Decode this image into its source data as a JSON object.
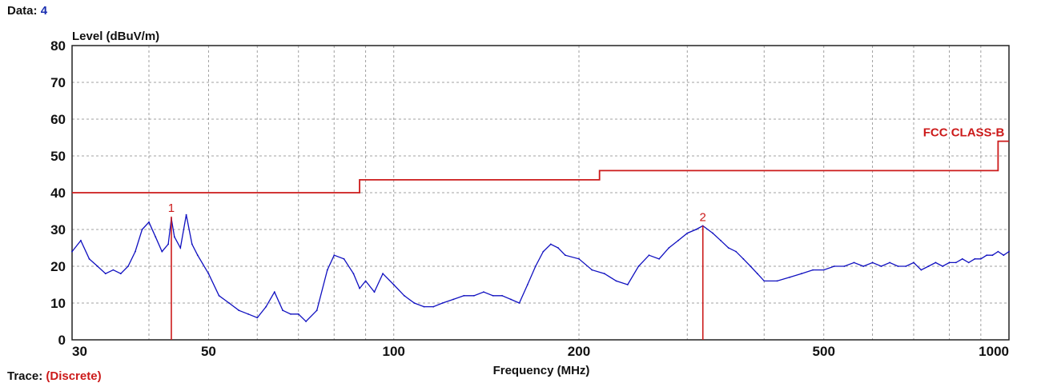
{
  "header": {
    "data_label": "Data:",
    "data_value": "4"
  },
  "footer": {
    "trace_label": "Trace:",
    "trace_value": "(Discrete)"
  },
  "chart_data": {
    "type": "line",
    "ylabel": "Level (dBuV/m)",
    "xlabel": "Frequency (MHz)",
    "x_scale": "log",
    "xlim": [
      30,
      1000
    ],
    "ylim": [
      0,
      80
    ],
    "x_ticks": [
      30,
      50,
      100,
      200,
      500,
      1000
    ],
    "x_tick_labels": [
      "30",
      "50",
      "100",
      "200",
      "500",
      "1000"
    ],
    "y_ticks": [
      0,
      10,
      20,
      30,
      40,
      50,
      60,
      70,
      80
    ],
    "y_tick_labels": [
      "0",
      "10",
      "20",
      "30",
      "40",
      "50",
      "60",
      "70",
      "80"
    ],
    "grid": true,
    "colors": {
      "trace": "#1010c0",
      "limit": "#cc1a1a",
      "grid": "#a0a0a0"
    },
    "limit_line": {
      "name": "FCC CLASS-B",
      "steps": [
        {
          "from": 30,
          "to": 88,
          "level": 40
        },
        {
          "from": 88,
          "to": 216,
          "level": 43.5
        },
        {
          "from": 216,
          "to": 960,
          "level": 46
        },
        {
          "from": 960,
          "to": 1000,
          "level": 54
        }
      ]
    },
    "markers": [
      {
        "label": "1",
        "x": 43.5,
        "y": 33.5
      },
      {
        "label": "2",
        "x": 318,
        "y": 31
      }
    ],
    "series": [
      {
        "x": [
          30,
          31,
          32,
          33,
          34,
          35,
          36,
          37,
          38,
          39,
          40,
          41,
          42,
          43,
          43.5,
          44,
          45,
          46,
          47,
          48,
          50,
          52,
          54,
          56,
          58,
          60,
          62,
          64,
          66,
          68,
          70,
          72,
          75,
          78,
          80,
          83,
          86,
          88,
          90,
          93,
          96,
          100,
          104,
          108,
          112,
          116,
          120,
          125,
          130,
          135,
          140,
          145,
          150,
          155,
          160,
          165,
          170,
          175,
          180,
          185,
          190,
          200,
          210,
          220,
          230,
          240,
          250,
          260,
          270,
          280,
          290,
          300,
          310,
          318,
          330,
          340,
          350,
          360,
          370,
          380,
          390,
          400,
          420,
          440,
          460,
          480,
          500,
          520,
          540,
          560,
          580,
          600,
          620,
          640,
          660,
          680,
          700,
          720,
          740,
          760,
          780,
          800,
          820,
          840,
          860,
          880,
          900,
          920,
          940,
          960,
          980,
          1000
        ],
        "y": [
          24,
          27,
          22,
          20,
          18,
          19,
          18,
          20,
          24,
          30,
          32,
          28,
          24,
          26,
          33,
          28,
          25,
          34,
          26,
          23,
          18,
          12,
          10,
          8,
          7,
          6,
          9,
          13,
          8,
          7,
          7,
          5,
          8,
          19,
          23,
          22,
          18,
          14,
          16,
          13,
          18,
          15,
          12,
          10,
          9,
          9,
          10,
          11,
          12,
          12,
          13,
          12,
          12,
          11,
          10,
          15,
          20,
          24,
          26,
          25,
          23,
          22,
          19,
          18,
          16,
          15,
          20,
          23,
          22,
          25,
          27,
          29,
          30,
          31,
          29,
          27,
          25,
          24,
          22,
          20,
          18,
          16,
          16,
          17,
          18,
          19,
          19,
          20,
          20,
          21,
          20,
          21,
          20,
          21,
          20,
          20,
          21,
          19,
          20,
          21,
          20,
          21,
          21,
          22,
          21,
          22,
          22,
          23,
          23,
          24,
          23,
          24
        ]
      }
    ]
  }
}
